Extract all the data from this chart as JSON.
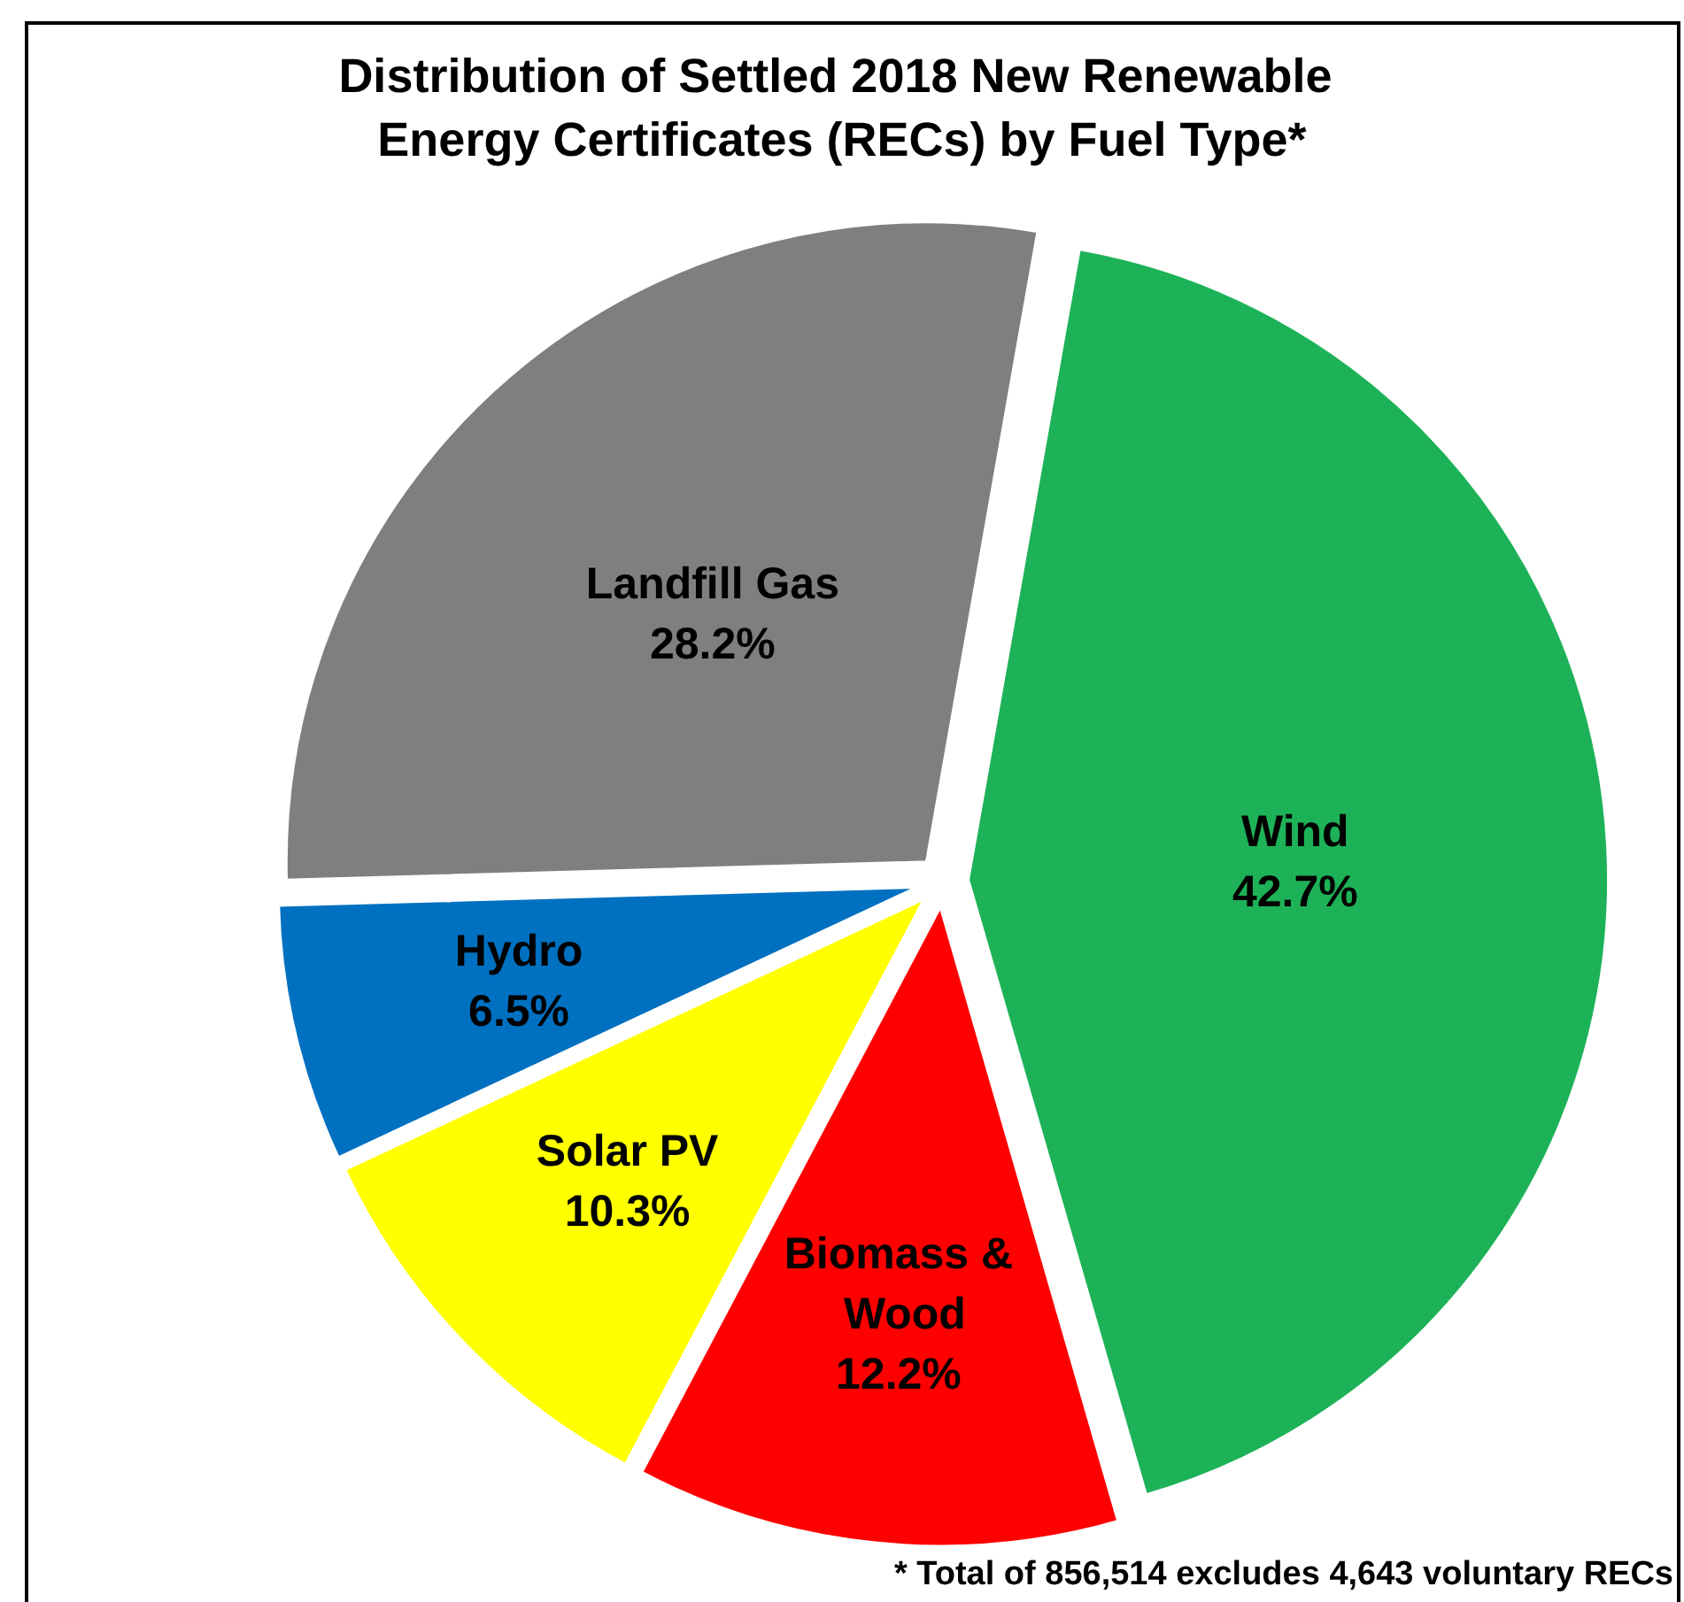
{
  "chart_data": {
    "type": "pie",
    "title": "Distribution of Settled 2018 New Renewable Energy Certificates (RECs) by Fuel Type*",
    "categories": [
      "Wind",
      "Biomass & Wood",
      "Solar PV",
      "Hydro",
      "Landfill Gas"
    ],
    "values": [
      42.7,
      12.2,
      10.3,
      6.5,
      28.2
    ],
    "value_labels": [
      "42.7%",
      "12.2%",
      "10.3%",
      "6.5%",
      "28.2%"
    ],
    "colors": [
      "#1db257",
      "#fe0000",
      "#ffff00",
      "#0070c0",
      "#7f7f7f"
    ],
    "annotations": [
      "* Total of 856,514 excludes 4,643 voluntary RECs"
    ],
    "legend": false
  }
}
